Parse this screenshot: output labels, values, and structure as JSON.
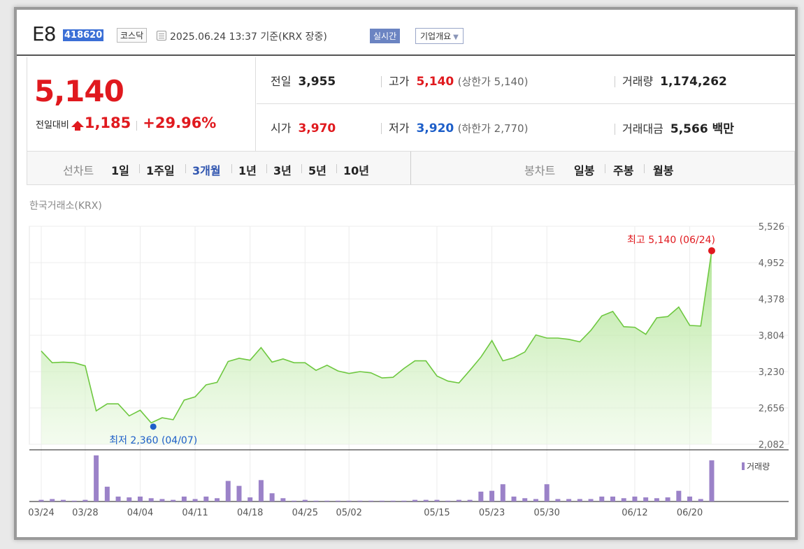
{
  "header": {
    "name": "E8",
    "code": "418620",
    "market": "코스닥",
    "date_info": "2025.06.24 13:37 기준(KRX 장중)",
    "realtime_label": "실시간",
    "corp_info_label": "기업개요"
  },
  "price": {
    "current": "5,140",
    "change_label": "전일대비",
    "change": "1,185",
    "change_pct": "+29.96%"
  },
  "stats": {
    "prev_close_label": "전일",
    "prev_close": "3,955",
    "high_label": "고가",
    "high": "5,140",
    "upper_limit": "(상한가 5,140)",
    "volume_label": "거래량",
    "volume": "1,174,262",
    "open_label": "시가",
    "open": "3,970",
    "low_label": "저가",
    "low": "3,920",
    "lower_limit": "(하한가 2,770)",
    "amount_label": "거래대금",
    "amount": "5,566 백만"
  },
  "tabs": {
    "line_label": "선차트",
    "line_periods": [
      "1일",
      "1주일",
      "3개월",
      "1년",
      "3년",
      "5년",
      "10년"
    ],
    "selected": "3개월",
    "candle_label": "봉차트",
    "candle_periods": [
      "일봉",
      "주봉",
      "월봉"
    ]
  },
  "chart_source": "한국거래소(KRX)",
  "colors": {
    "up": "#e0191e",
    "down": "#1e5fc9",
    "line": "#6ec840",
    "volume": "#9b82c8"
  },
  "chart_data": {
    "type": "area",
    "y_ticks": [
      "5,526",
      "4,952",
      "4,378",
      "3,804",
      "3,230",
      "2,656",
      "2,082"
    ],
    "ylim": [
      2082,
      5526
    ],
    "x_tick_labels": [
      "03/24",
      "03/28",
      "04/04",
      "04/11",
      "04/18",
      "04/25",
      "05/02",
      "05/15",
      "05/23",
      "05/30",
      "06/12",
      "06/20"
    ],
    "x_tick_index": [
      0,
      4,
      9,
      14,
      19,
      24,
      28,
      36,
      41,
      46,
      54,
      59
    ],
    "prices": [
      3555,
      3370,
      3380,
      3370,
      3320,
      2610,
      2720,
      2720,
      2530,
      2620,
      2420,
      2500,
      2470,
      2780,
      2830,
      3020,
      3060,
      3390,
      3440,
      3410,
      3610,
      3380,
      3430,
      3370,
      3370,
      3250,
      3330,
      3240,
      3200,
      3230,
      3210,
      3130,
      3140,
      3280,
      3400,
      3400,
      3160,
      3080,
      3050,
      3250,
      3460,
      3720,
      3400,
      3450,
      3540,
      3810,
      3760,
      3760,
      3740,
      3700,
      3880,
      4110,
      4180,
      3940,
      3930,
      3820,
      4080,
      4100,
      4250,
      3960,
      3950,
      5140
    ],
    "volume": [
      2,
      3,
      2,
      1,
      2,
      56,
      18,
      6,
      5,
      6,
      4,
      3,
      2,
      6,
      3,
      6,
      4,
      25,
      19,
      5,
      26,
      10,
      4,
      1,
      2,
      1,
      1,
      1,
      1,
      1,
      1,
      1,
      1,
      1,
      2,
      2,
      2,
      1,
      2,
      2,
      12,
      13,
      21,
      6,
      4,
      3,
      21,
      3,
      3,
      3,
      3,
      6,
      6,
      4,
      6,
      5,
      4,
      5,
      13,
      6,
      3,
      50
    ],
    "volume_label": "거래량",
    "max_label": "최고 5,140 (06/24)",
    "min_label": "최저 2,360 (04/07)",
    "min_value": 2360,
    "min_index": 10
  }
}
